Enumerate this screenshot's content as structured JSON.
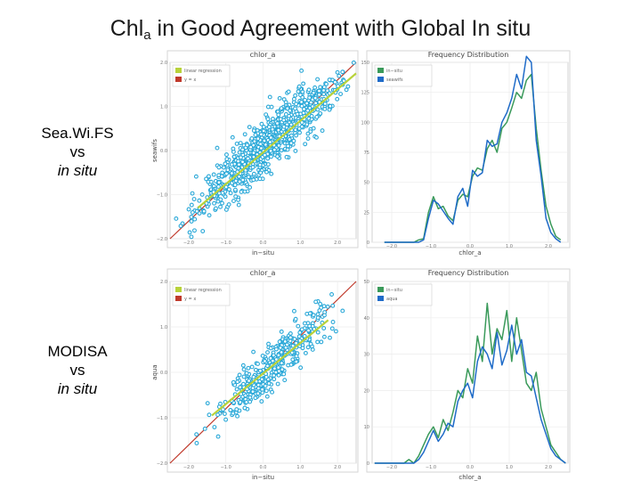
{
  "title": {
    "main": "Chl",
    "sub": "a",
    "rest": " in Good Agreement with Global In situ"
  },
  "row_labels": [
    {
      "line1": "Sea.Wi.FS",
      "line2": "vs",
      "line3": "in situ"
    },
    {
      "line1": "MODISA",
      "line2": "vs",
      "line3": "in situ"
    }
  ],
  "colors": {
    "points": "#2aa8d8",
    "regression": "#b8d23a",
    "identity": "#c0392b",
    "insitu": "#3a9a5a",
    "satellite": "#1f6bc8"
  },
  "chart_data": [
    {
      "type": "scatter",
      "title": "chlor_a",
      "xlabel": "in−situ",
      "ylabel": "seawifs",
      "xlim": [
        -2.0,
        2.0
      ],
      "ylim": [
        -2.0,
        2.0
      ],
      "xticks": [
        "−2.0",
        "−1.0",
        "0.0",
        "1.0",
        "2.0"
      ],
      "yticks": [
        "2.0",
        "1.0",
        "0.0",
        "−1.0",
        "−2.0"
      ],
      "legend": [
        "linear regression",
        "y = x"
      ],
      "legend_position": "top-left",
      "grid": true,
      "regression": {
        "x": [
          -1.4,
          2.0
        ],
        "y": [
          -1.3,
          1.75
        ]
      },
      "center": [
        0.1,
        0.15
      ],
      "spread": 0.75,
      "noise": 0.3,
      "points": 900
    },
    {
      "type": "line",
      "title": "Frequency Distribution",
      "xlabel": "chlor_a",
      "ylabel": "",
      "xlim": [
        -2.0,
        2.0
      ],
      "ylim": [
        0,
        150
      ],
      "xticks": [
        "−2.0",
        "−1.0",
        "0.0",
        "1.0",
        "2.0"
      ],
      "yticks": [
        "150",
        "125",
        "100",
        "75",
        "50",
        "25",
        "0"
      ],
      "legend_position": "top-left",
      "grid": true,
      "x": [
        -1.75,
        -1.65,
        -1.55,
        -1.45,
        -1.35,
        -1.25,
        -1.15,
        -1.05,
        -0.95,
        -0.85,
        -0.75,
        -0.65,
        -0.55,
        -0.45,
        -0.35,
        -0.25,
        -0.15,
        -0.05,
        0.05,
        0.15,
        0.25,
        0.35,
        0.45,
        0.55,
        0.65,
        0.75,
        0.85,
        0.95,
        1.05,
        1.15,
        1.25,
        1.35,
        1.45,
        1.55,
        1.65,
        1.75,
        1.85
      ],
      "series": [
        {
          "name": "in−situ",
          "values": [
            0,
            0,
            0,
            0,
            0,
            0,
            0,
            2,
            3,
            25,
            38,
            28,
            30,
            22,
            18,
            35,
            40,
            38,
            55,
            62,
            60,
            78,
            85,
            75,
            95,
            100,
            112,
            125,
            120,
            135,
            140,
            95,
            60,
            30,
            15,
            5,
            2
          ]
        },
        {
          "name": "seawifs",
          "values": [
            0,
            0,
            0,
            0,
            0,
            0,
            0,
            0,
            2,
            20,
            35,
            32,
            26,
            20,
            15,
            38,
            45,
            30,
            60,
            55,
            58,
            85,
            80,
            82,
            100,
            108,
            120,
            140,
            128,
            155,
            150,
            85,
            55,
            20,
            8,
            3,
            0
          ]
        }
      ]
    },
    {
      "type": "scatter",
      "title": "chlor_a",
      "xlabel": "in−situ",
      "ylabel": "aqua",
      "xlim": [
        -2.5,
        1.5
      ],
      "ylim": [
        -2.5,
        1.5
      ],
      "xticks": [
        "−2.0",
        "−1.0",
        "0.0",
        "1.0",
        "2.0"
      ],
      "yticks": [
        "2.0",
        "1.0",
        "0.0",
        "−1.0",
        "−2.0"
      ],
      "legend": [
        "linear regression",
        "y = x"
      ],
      "legend_position": "top-left",
      "grid": true,
      "regression": {
        "x": [
          -1.6,
          0.9
        ],
        "y": [
          -1.45,
          0.65
        ]
      },
      "center": [
        -0.25,
        -0.3
      ],
      "spread": 0.55,
      "noise": 0.25,
      "points": 400
    },
    {
      "type": "line",
      "title": "Frequency Distribution",
      "xlabel": "chlor_a",
      "ylabel": "",
      "xlim": [
        -2.5,
        1.5
      ],
      "ylim": [
        0,
        50
      ],
      "xticks": [
        "−2.0",
        "−1.0",
        "0.0",
        "1.0",
        "2.0"
      ],
      "yticks": [
        "50",
        "40",
        "30",
        "20",
        "10",
        "0"
      ],
      "legend_position": "top-left",
      "grid": true,
      "x": [
        -2.45,
        -2.35,
        -2.25,
        -2.15,
        -2.05,
        -1.95,
        -1.85,
        -1.75,
        -1.65,
        -1.55,
        -1.45,
        -1.35,
        -1.25,
        -1.15,
        -1.05,
        -0.95,
        -0.85,
        -0.75,
        -0.65,
        -0.55,
        -0.45,
        -0.35,
        -0.25,
        -0.15,
        -0.05,
        0.05,
        0.15,
        0.25,
        0.35,
        0.45,
        0.55,
        0.65,
        0.75,
        0.85,
        0.95,
        1.05,
        1.15,
        1.25,
        1.35,
        1.45
      ],
      "series": [
        {
          "name": "in−situ",
          "values": [
            0,
            0,
            0,
            0,
            0,
            0,
            0,
            1,
            0,
            2,
            5,
            8,
            10,
            7,
            12,
            9,
            14,
            20,
            18,
            26,
            22,
            35,
            28,
            44,
            30,
            37,
            34,
            42,
            28,
            40,
            31,
            22,
            20,
            25,
            15,
            10,
            5,
            3,
            1,
            0
          ]
        },
        {
          "name": "aqua",
          "values": [
            0,
            0,
            0,
            0,
            0,
            0,
            0,
            0,
            0,
            1,
            3,
            6,
            9,
            6,
            8,
            11,
            10,
            17,
            20,
            22,
            18,
            28,
            32,
            30,
            26,
            36,
            27,
            31,
            38,
            30,
            34,
            25,
            24,
            18,
            12,
            8,
            4,
            2,
            1,
            0
          ]
        }
      ]
    }
  ]
}
